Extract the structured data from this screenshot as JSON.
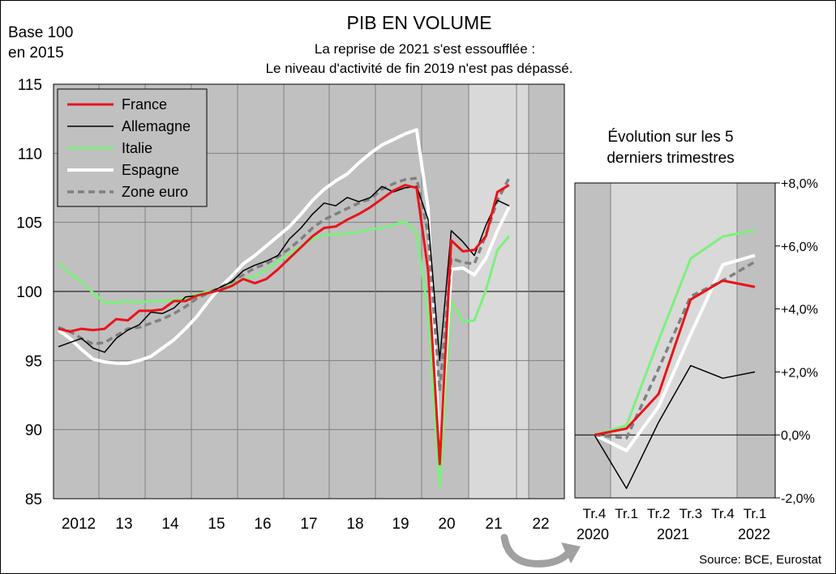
{
  "header": {
    "base_label": [
      "Base 100",
      "en 2015"
    ],
    "title": "PIB EN VOLUME",
    "subtitle": [
      "La reprise de 2021 s'est essoufflée :",
      "Le niveau d'activité de fin 2019 n'est pas dépassé."
    ]
  },
  "source": "Source: BCE, Eurostat",
  "colors": {
    "France": "#e8141a",
    "Allemagne": "#000000",
    "Italie": "#7cf07c",
    "Espagne": "#ffffff",
    "Zone euro": "#808080",
    "plot_bg": "#c0c0c0",
    "highlight_bg": "#d9d9d9"
  },
  "chart_data": [
    {
      "type": "line",
      "y_scale": "Base 100 en 2015",
      "ylim": [
        85,
        115
      ],
      "yticks": [
        "85",
        "90",
        "95",
        "100",
        "105",
        "110",
        "115"
      ],
      "xtick_labels": [
        "2012",
        "13",
        "14",
        "15",
        "16",
        "17",
        "18",
        "19",
        "20",
        "21",
        "22"
      ],
      "x_start": 2012.0,
      "x_end": 2022.0,
      "grid": true,
      "legend_position": "top-left",
      "shaded_recent_period": [
        2020.5,
        2021.75
      ],
      "series": [
        {
          "name": "France",
          "x": [
            2012.0,
            2012.25,
            2012.5,
            2012.75,
            2013.0,
            2013.25,
            2013.5,
            2013.75,
            2014.0,
            2014.25,
            2014.5,
            2014.75,
            2015.0,
            2015.25,
            2015.5,
            2015.75,
            2016.0,
            2016.25,
            2016.5,
            2016.75,
            2017.0,
            2017.25,
            2017.5,
            2017.75,
            2018.0,
            2018.25,
            2018.5,
            2018.75,
            2019.0,
            2019.25,
            2019.5,
            2019.75,
            2020.0,
            2020.25,
            2020.5,
            2020.75,
            2021.0,
            2021.25,
            2021.5,
            2021.75
          ],
          "values": [
            97.3,
            97.1,
            97.3,
            97.2,
            97.3,
            98.0,
            97.9,
            98.6,
            98.6,
            98.7,
            99.3,
            99.3,
            99.7,
            99.9,
            100.1,
            100.4,
            100.9,
            100.6,
            100.9,
            101.6,
            102.4,
            103.2,
            104.0,
            104.6,
            104.7,
            105.2,
            105.6,
            106.1,
            106.7,
            107.3,
            107.7,
            107.5,
            101.5,
            87.5,
            103.7,
            102.9,
            103.0,
            104.0,
            107.2,
            107.7
          ]
        },
        {
          "name": "Allemagne",
          "x": [
            2012.0,
            2012.25,
            2012.5,
            2012.75,
            2013.0,
            2013.25,
            2013.5,
            2013.75,
            2014.0,
            2014.25,
            2014.5,
            2014.75,
            2015.0,
            2015.25,
            2015.5,
            2015.75,
            2016.0,
            2016.25,
            2016.5,
            2016.75,
            2017.0,
            2017.25,
            2017.5,
            2017.75,
            2018.0,
            2018.25,
            2018.5,
            2018.75,
            2019.0,
            2019.25,
            2019.5,
            2019.75,
            2020.0,
            2020.25,
            2020.5,
            2020.75,
            2021.0,
            2021.25,
            2021.5,
            2021.75
          ],
          "values": [
            96.0,
            96.3,
            96.6,
            95.9,
            95.6,
            96.6,
            97.2,
            97.6,
            98.5,
            98.4,
            98.8,
            99.6,
            99.7,
            99.9,
            100.3,
            100.7,
            101.5,
            101.9,
            102.2,
            102.6,
            103.8,
            104.6,
            105.6,
            106.4,
            106.2,
            106.8,
            106.5,
            106.8,
            107.6,
            107.2,
            107.5,
            107.6,
            105.2,
            95.0,
            104.4,
            103.6,
            102.6,
            104.8,
            106.6,
            106.2
          ]
        },
        {
          "name": "Italie",
          "x": [
            2012.0,
            2012.25,
            2012.5,
            2012.75,
            2013.0,
            2013.25,
            2013.5,
            2013.75,
            2014.0,
            2014.25,
            2014.5,
            2014.75,
            2015.0,
            2015.25,
            2015.5,
            2015.75,
            2016.0,
            2016.25,
            2016.5,
            2016.75,
            2017.0,
            2017.25,
            2017.5,
            2017.75,
            2018.0,
            2018.25,
            2018.5,
            2018.75,
            2019.0,
            2019.25,
            2019.5,
            2019.75,
            2020.0,
            2020.25,
            2020.5,
            2020.75,
            2021.0,
            2021.25,
            2021.5,
            2021.75
          ],
          "values": [
            102.1,
            101.3,
            100.7,
            99.9,
            99.2,
            99.2,
            99.3,
            99.2,
            99.3,
            99.3,
            99.4,
            99.5,
            99.8,
            100.0,
            100.3,
            100.5,
            100.9,
            101.1,
            101.6,
            102.2,
            102.7,
            103.3,
            103.8,
            104.1,
            104.1,
            104.2,
            104.3,
            104.5,
            104.6,
            104.8,
            105.1,
            104.2,
            98.4,
            85.8,
            99.3,
            97.8,
            97.9,
            100.1,
            103.0,
            104.0
          ]
        },
        {
          "name": "Espagne",
          "x": [
            2012.0,
            2012.25,
            2012.5,
            2012.75,
            2013.0,
            2013.25,
            2013.5,
            2013.75,
            2014.0,
            2014.25,
            2014.5,
            2014.75,
            2015.0,
            2015.25,
            2015.5,
            2015.75,
            2016.0,
            2016.25,
            2016.5,
            2016.75,
            2017.0,
            2017.25,
            2017.5,
            2017.75,
            2018.0,
            2018.25,
            2018.5,
            2018.75,
            2019.0,
            2019.25,
            2019.5,
            2019.75,
            2020.0,
            2020.25,
            2020.5,
            2020.75,
            2021.0,
            2021.25,
            2021.5,
            2021.75
          ],
          "values": [
            97.2,
            96.6,
            95.8,
            95.1,
            94.9,
            94.8,
            94.8,
            95.0,
            95.3,
            95.9,
            96.5,
            97.3,
            98.2,
            99.3,
            100.3,
            101.1,
            102.0,
            102.6,
            103.3,
            104.0,
            104.7,
            105.6,
            106.6,
            107.4,
            108.0,
            108.5,
            109.3,
            110.0,
            110.6,
            111.0,
            111.4,
            111.7,
            106.0,
            88.2,
            101.6,
            101.7,
            101.2,
            102.4,
            104.4,
            106.1
          ]
        },
        {
          "name": "Zone euro",
          "x": [
            2012.0,
            2012.25,
            2012.5,
            2012.75,
            2013.0,
            2013.25,
            2013.5,
            2013.75,
            2014.0,
            2014.25,
            2014.5,
            2014.75,
            2015.0,
            2015.25,
            2015.5,
            2015.75,
            2016.0,
            2016.25,
            2016.5,
            2016.75,
            2017.0,
            2017.25,
            2017.5,
            2017.75,
            2018.0,
            2018.25,
            2018.5,
            2018.75,
            2019.0,
            2019.25,
            2019.5,
            2019.75,
            2020.0,
            2020.25,
            2020.5,
            2020.75,
            2021.0,
            2021.25,
            2021.5,
            2021.75
          ],
          "values": [
            97.4,
            97.1,
            96.6,
            96.2,
            96.3,
            96.8,
            97.3,
            97.4,
            97.7,
            98.0,
            98.4,
            98.9,
            99.5,
            99.9,
            100.3,
            100.7,
            101.2,
            101.7,
            102.0,
            102.5,
            103.1,
            103.8,
            104.6,
            105.2,
            105.6,
            106.0,
            106.4,
            106.7,
            107.4,
            107.8,
            108.1,
            108.2,
            104.2,
            92.8,
            102.4,
            102.1,
            102.0,
            104.1,
            106.6,
            108.2
          ]
        }
      ]
    },
    {
      "type": "line",
      "title": [
        "Évolution sur les 5",
        "derniers trimestres"
      ],
      "ylim": [
        -2,
        8
      ],
      "yticks": [
        "-2,0%",
        "0,0%",
        "+2,0%",
        "+4,0%",
        "+6,0%",
        "+8,0%"
      ],
      "categories": [
        "Tr.4",
        "Tr.1",
        "Tr.2",
        "Tr.3",
        "Tr.4",
        "Tr.1"
      ],
      "year_labels": [
        "2020",
        "2021",
        "2022"
      ],
      "grid": false,
      "series": [
        {
          "name": "France",
          "values": [
            0.0,
            0.2,
            1.3,
            4.3,
            4.9,
            4.7
          ]
        },
        {
          "name": "Allemagne",
          "values": [
            0.0,
            -1.7,
            0.4,
            2.2,
            1.8,
            2.0
          ]
        },
        {
          "name": "Italie",
          "values": [
            0.0,
            0.3,
            3.0,
            5.6,
            6.3,
            6.5
          ]
        },
        {
          "name": "Espagne",
          "values": [
            0.0,
            -0.5,
            0.9,
            3.2,
            5.4,
            5.7
          ]
        },
        {
          "name": "Zone euro",
          "values": [
            0.0,
            -0.1,
            2.1,
            4.4,
            4.9,
            5.5
          ]
        }
      ]
    }
  ]
}
